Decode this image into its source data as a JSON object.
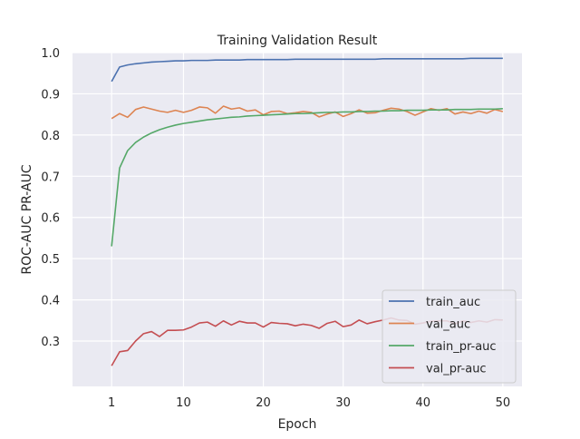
{
  "chart_data": {
    "type": "line",
    "title": "Training Validation Result",
    "xlabel": "Epoch",
    "ylabel": "ROC-AUC PR-AUC",
    "xlim": [
      -3.9,
      52.4
    ],
    "ylim": [
      0.19,
      1.0
    ],
    "xticks": [
      1,
      10,
      20,
      30,
      40,
      50
    ],
    "xtick_labels": [
      "1",
      "10",
      "20",
      "30",
      "40",
      "50"
    ],
    "yticks": [
      0.3,
      0.4,
      0.5,
      0.6,
      0.7,
      0.8,
      0.9,
      1.0
    ],
    "ytick_labels": [
      "0.3",
      "0.4",
      "0.5",
      "0.6",
      "0.7",
      "0.8",
      "0.9",
      "1.0"
    ],
    "grid": true,
    "legend_position": "lower-right",
    "x": [
      1,
      2,
      3,
      4,
      5,
      6,
      7,
      8,
      9,
      10,
      11,
      12,
      13,
      14,
      15,
      16,
      17,
      18,
      19,
      20,
      21,
      22,
      23,
      24,
      25,
      26,
      27,
      28,
      29,
      30,
      31,
      32,
      33,
      34,
      35,
      36,
      37,
      38,
      39,
      40,
      41,
      42,
      43,
      44,
      45,
      46,
      47,
      48,
      49,
      50
    ],
    "series": [
      {
        "name": "train_auc",
        "color": "#4c72b0",
        "values": [
          0.93,
          0.965,
          0.97,
          0.973,
          0.975,
          0.977,
          0.978,
          0.979,
          0.98,
          0.98,
          0.981,
          0.981,
          0.981,
          0.982,
          0.982,
          0.982,
          0.982,
          0.983,
          0.983,
          0.983,
          0.983,
          0.983,
          0.983,
          0.984,
          0.984,
          0.984,
          0.984,
          0.984,
          0.984,
          0.984,
          0.984,
          0.984,
          0.984,
          0.984,
          0.985,
          0.985,
          0.985,
          0.985,
          0.985,
          0.985,
          0.985,
          0.985,
          0.985,
          0.985,
          0.985,
          0.986,
          0.986,
          0.986,
          0.986,
          0.986
        ]
      },
      {
        "name": "val_auc",
        "color": "#dd8452",
        "values": [
          0.84,
          0.852,
          0.843,
          0.862,
          0.868,
          0.863,
          0.858,
          0.855,
          0.86,
          0.855,
          0.86,
          0.868,
          0.866,
          0.853,
          0.87,
          0.863,
          0.866,
          0.858,
          0.861,
          0.849,
          0.857,
          0.858,
          0.852,
          0.854,
          0.857,
          0.855,
          0.844,
          0.851,
          0.856,
          0.845,
          0.852,
          0.861,
          0.853,
          0.854,
          0.86,
          0.865,
          0.863,
          0.857,
          0.848,
          0.856,
          0.864,
          0.86,
          0.864,
          0.851,
          0.856,
          0.852,
          0.858,
          0.853,
          0.862,
          0.857
        ]
      },
      {
        "name": "train_pr-auc",
        "color": "#55a868",
        "values": [
          0.53,
          0.72,
          0.762,
          0.782,
          0.795,
          0.805,
          0.813,
          0.819,
          0.824,
          0.828,
          0.831,
          0.834,
          0.837,
          0.839,
          0.841,
          0.843,
          0.844,
          0.846,
          0.847,
          0.848,
          0.849,
          0.85,
          0.851,
          0.852,
          0.852,
          0.853,
          0.854,
          0.855,
          0.855,
          0.856,
          0.856,
          0.857,
          0.857,
          0.858,
          0.858,
          0.859,
          0.859,
          0.86,
          0.86,
          0.86,
          0.861,
          0.861,
          0.861,
          0.862,
          0.862,
          0.862,
          0.863,
          0.863,
          0.863,
          0.864
        ]
      },
      {
        "name": "val_pr-auc",
        "color": "#c44e52",
        "values": [
          0.24,
          0.274,
          0.277,
          0.3,
          0.318,
          0.323,
          0.311,
          0.326,
          0.326,
          0.327,
          0.334,
          0.344,
          0.346,
          0.336,
          0.349,
          0.339,
          0.348,
          0.344,
          0.344,
          0.334,
          0.345,
          0.343,
          0.342,
          0.337,
          0.341,
          0.338,
          0.331,
          0.343,
          0.348,
          0.335,
          0.339,
          0.351,
          0.342,
          0.347,
          0.351,
          0.356,
          0.351,
          0.35,
          0.341,
          0.344,
          0.348,
          0.349,
          0.349,
          0.342,
          0.349,
          0.345,
          0.349,
          0.346,
          0.352,
          0.351
        ]
      }
    ]
  }
}
